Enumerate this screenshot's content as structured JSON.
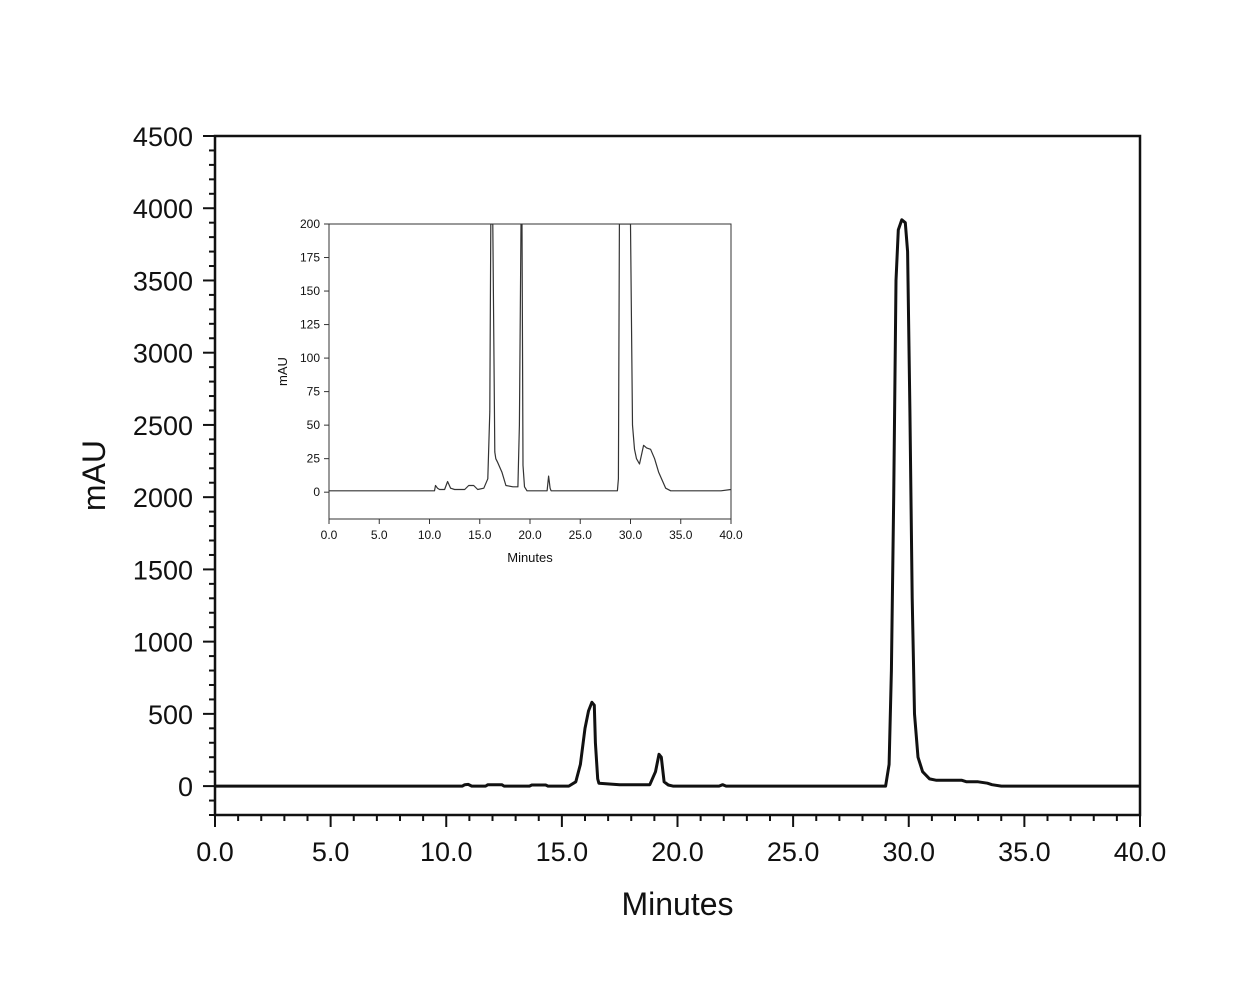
{
  "chart_data": [
    {
      "id": "main",
      "type": "line",
      "title": "",
      "xlabel": "Minutes",
      "ylabel": "mAU",
      "xlim": [
        0,
        40
      ],
      "ylim": [
        -200,
        4500
      ],
      "x_ticks": [
        0,
        5,
        10,
        15,
        20,
        25,
        30,
        35,
        40
      ],
      "x_tick_labels": [
        "0.0",
        "5.0",
        "10.0",
        "15.0",
        "20.0",
        "25.0",
        "30.0",
        "35.0",
        "40.0"
      ],
      "y_ticks": [
        0,
        500,
        1000,
        1500,
        2000,
        2500,
        3000,
        3500,
        4000,
        4500
      ],
      "y_tick_labels": [
        "0",
        "500",
        "1000",
        "1500",
        "2000",
        "2500",
        "3000",
        "3500",
        "4000",
        "4500"
      ],
      "grid": false,
      "line_color": "#111111",
      "series": [
        {
          "x": [
            0,
            10.7,
            10.8,
            10.95,
            11.1,
            11.7,
            11.8,
            12.4,
            12.5,
            13.6,
            13.7,
            14.3,
            14.4,
            15.3,
            15.6,
            15.8,
            16.0,
            16.15,
            16.3,
            16.4,
            16.45,
            16.55,
            16.6,
            17.5,
            18.8,
            19.05,
            19.2,
            19.3,
            19.42,
            19.6,
            19.8,
            20.5,
            21.8,
            21.95,
            22.1,
            28.8,
            29.0,
            29.15,
            29.25,
            29.35,
            29.45,
            29.55,
            29.7,
            29.85,
            29.95,
            30.05,
            30.15,
            30.25,
            30.4,
            30.6,
            30.9,
            31.2,
            31.5,
            32.3,
            32.5,
            33.0,
            33.4,
            33.6,
            34.0,
            40
          ],
          "y": [
            0,
            0,
            10,
            12,
            0,
            0,
            10,
            10,
            0,
            0,
            8,
            8,
            0,
            0,
            30,
            150,
            400,
            520,
            580,
            560,
            300,
            50,
            20,
            10,
            10,
            100,
            220,
            200,
            30,
            8,
            0,
            0,
            0,
            10,
            0,
            0,
            0,
            150,
            800,
            2000,
            3500,
            3850,
            3920,
            3900,
            3700,
            2600,
            1300,
            500,
            200,
            100,
            50,
            40,
            40,
            40,
            30,
            30,
            20,
            10,
            0,
            0
          ]
        }
      ]
    },
    {
      "id": "inset",
      "type": "line",
      "title": "",
      "xlabel": "Minutes",
      "ylabel": "mAU",
      "xlim": [
        0,
        40
      ],
      "ylim": [
        -20,
        200
      ],
      "x_ticks": [
        0,
        5,
        10,
        15,
        20,
        25,
        30,
        35,
        40
      ],
      "x_tick_labels": [
        "0.0",
        "5.0",
        "10.0",
        "15.0",
        "20.0",
        "25.0",
        "30.0",
        "35.0",
        "40.0"
      ],
      "y_ticks": [
        0,
        25,
        50,
        75,
        100,
        125,
        150,
        175,
        200
      ],
      "y_tick_labels": [
        "0",
        "25",
        "50",
        "75",
        "100",
        "125",
        "150",
        "175",
        "200"
      ],
      "grid": false,
      "line_color": "#333333",
      "series": [
        {
          "x": [
            0,
            10.5,
            10.6,
            10.8,
            11.0,
            11.5,
            11.8,
            12.1,
            12.5,
            13.5,
            13.9,
            14.4,
            14.8,
            15.4,
            15.8,
            16.0,
            16.1,
            16.3,
            16.5,
            16.6,
            16.8,
            17.2,
            17.6,
            18.3,
            18.8,
            18.95,
            19.1,
            19.2,
            19.3,
            19.45,
            19.7,
            20.5,
            21.7,
            21.85,
            22.0,
            22.1,
            23.0,
            28.7,
            28.8,
            28.9,
            29.0,
            30.0,
            30.2,
            30.4,
            30.6,
            30.9,
            31.3,
            31.6,
            32.0,
            32.4,
            32.8,
            33.5,
            34.0,
            34.5,
            39.0,
            40
          ],
          "y": [
            1,
            1,
            5,
            3,
            2,
            2,
            8,
            3,
            2,
            2,
            5,
            5,
            2,
            3,
            10,
            60,
            200,
            200,
            30,
            25,
            22,
            15,
            5,
            4,
            4,
            50,
            200,
            200,
            20,
            4,
            1,
            1,
            1,
            12,
            3,
            1,
            1,
            1,
            10,
            200,
            200,
            200,
            50,
            32,
            25,
            21,
            35,
            33,
            32,
            25,
            15,
            3,
            1,
            1,
            1,
            2
          ]
        }
      ]
    }
  ]
}
